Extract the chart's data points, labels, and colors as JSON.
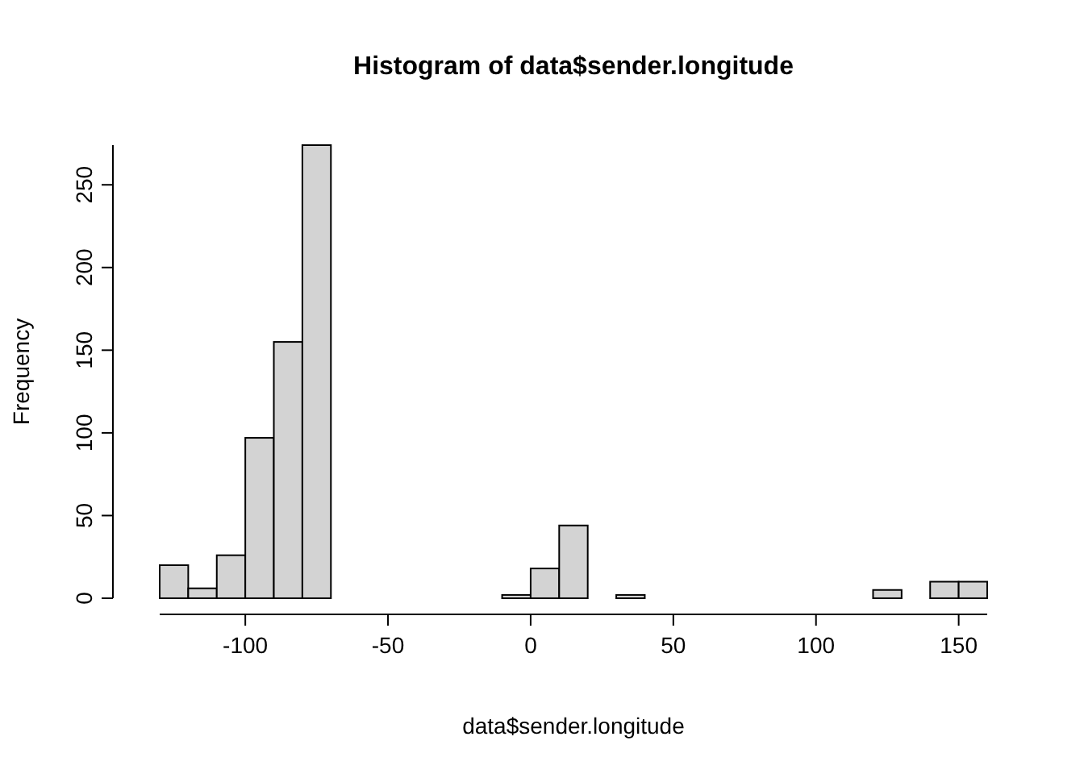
{
  "chart_data": {
    "type": "histogram",
    "title": "Histogram of data$sender.longitude",
    "xlabel": "data$sender.longitude",
    "ylabel": "Frequency",
    "bins": [
      -130,
      -120,
      -110,
      -100,
      -90,
      -80,
      -70,
      -60,
      -50,
      -40,
      -30,
      -20,
      -10,
      0,
      10,
      20,
      30,
      40,
      50,
      60,
      70,
      80,
      90,
      100,
      110,
      120,
      130,
      140,
      150,
      160
    ],
    "values": [
      20,
      6,
      26,
      97,
      155,
      274,
      0,
      0,
      0,
      0,
      0,
      0,
      2,
      18,
      44,
      0,
      2,
      0,
      0,
      0,
      0,
      0,
      0,
      0,
      0,
      5,
      0,
      10,
      10
    ],
    "color": "#d3d3d3",
    "xlim": [
      -130,
      160
    ],
    "ylim": [
      0,
      274
    ],
    "xticks": [
      -100,
      -50,
      0,
      50,
      100,
      150
    ],
    "yticks": [
      0,
      50,
      100,
      150,
      200,
      250
    ],
    "grid": false
  }
}
